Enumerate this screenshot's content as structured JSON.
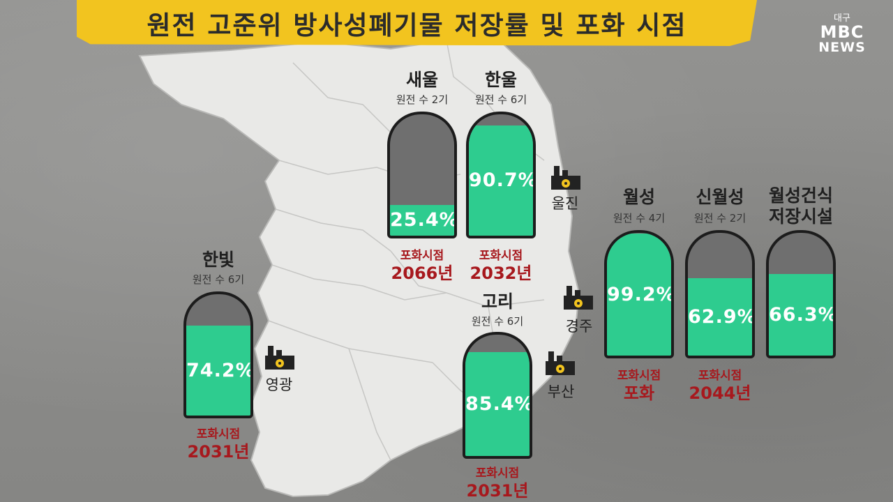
{
  "title": "원전 고준위 방사성폐기물 저장률 및 포화 시점",
  "logo": {
    "top": "대구",
    "brand": "MBC",
    "sub": "NEWS"
  },
  "colors": {
    "banner": "#f2c41f",
    "fill": "#2ecc8f",
    "empty": "#6f6f6f",
    "accent": "#a7181d"
  },
  "plants": [
    {
      "id": "saeul",
      "name": "새울",
      "units": "원전 수 2기",
      "percent": 25.4,
      "percent_label": "25.4%",
      "saturation_label": "포화시점",
      "saturation": "2066년"
    },
    {
      "id": "hanul",
      "name": "한울",
      "units": "원전 수 6기",
      "percent": 90.7,
      "percent_label": "90.7%",
      "saturation_label": "포화시점",
      "saturation": "2032년"
    },
    {
      "id": "hanbit",
      "name": "한빛",
      "units": "원전 수 6기",
      "percent": 74.2,
      "percent_label": "74.2%",
      "saturation_label": "포화시점",
      "saturation": "2031년"
    },
    {
      "id": "kori",
      "name": "고리",
      "units": "원전 수 6기",
      "percent": 85.4,
      "percent_label": "85.4%",
      "saturation_label": "포화시점",
      "saturation": "2031년"
    },
    {
      "id": "wolsong",
      "name": "월성",
      "units": "원전 수 4기",
      "percent": 99.2,
      "percent_label": "99.2%",
      "saturation_label": "포화시점",
      "saturation": "포화"
    },
    {
      "id": "shinwolsong",
      "name": "신월성",
      "units": "원전 수 2기",
      "percent": 62.9,
      "percent_label": "62.9%",
      "saturation_label": "포화시점",
      "saturation": "2044년"
    },
    {
      "id": "wolsong_dry",
      "name_line1": "월성건식",
      "name_line2": "저장시설",
      "percent": 66.3,
      "percent_label": "66.3%"
    }
  ],
  "regions": {
    "uljin": "울진",
    "gyeongju": "경주",
    "busan": "부산",
    "yeonggwang": "영광"
  },
  "icons": [
    "nuclear-factory-icon"
  ]
}
